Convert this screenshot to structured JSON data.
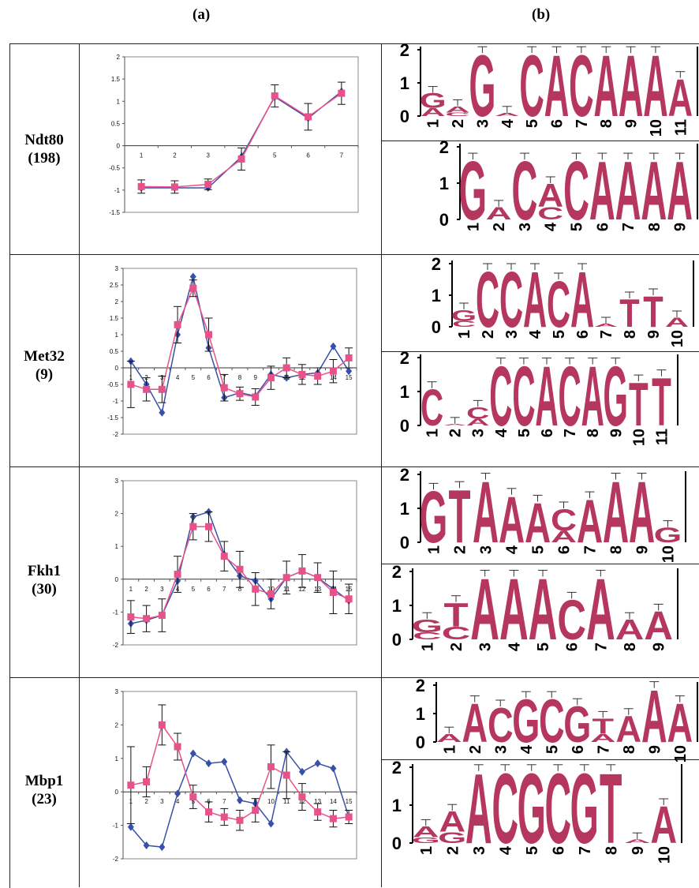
{
  "header": {
    "label_a": "(a)",
    "label_b": "(b)"
  },
  "colors": {
    "blue_series": "#3850a8",
    "pink_series": "#e8528a",
    "logo_letter": "#b5375e"
  },
  "rows": [
    {
      "name": "Ndt80",
      "count": "(198)"
    },
    {
      "name": "Met32",
      "count": "(9)"
    },
    {
      "name": "Fkh1",
      "count": "(30)"
    },
    {
      "name": "Mbp1",
      "count": "(23)"
    }
  ],
  "chart_data": [
    {
      "type": "line",
      "name": "Ndt80",
      "x": [
        1,
        2,
        3,
        4,
        5,
        6,
        7
      ],
      "ylim": [
        -1.5,
        2
      ],
      "yticks": [
        -1.5,
        -1,
        -0.5,
        0,
        0.5,
        1,
        1.5,
        2
      ],
      "series": [
        {
          "values": [
            -0.95,
            -0.95,
            -0.95,
            -0.25,
            1.1,
            0.62,
            1.22
          ]
        },
        {
          "values": [
            -0.92,
            -0.93,
            -0.87,
            -0.3,
            1.12,
            0.65,
            1.18
          ],
          "err": [
            0.15,
            0.14,
            0.12,
            0.25,
            0.25,
            0.3,
            0.25
          ]
        }
      ]
    },
    {
      "type": "line",
      "name": "Met32",
      "x": [
        1,
        2,
        3,
        4,
        5,
        6,
        7,
        8,
        9,
        10,
        11,
        12,
        13,
        14,
        15
      ],
      "ylim": [
        -2,
        3
      ],
      "yticks": [
        -2,
        -1.5,
        -1,
        -0.5,
        0,
        0.5,
        1,
        1.5,
        2,
        2.5,
        3
      ],
      "series": [
        {
          "values": [
            0.2,
            -0.5,
            -1.35,
            1.0,
            2.75,
            0.6,
            -0.9,
            -0.75,
            -0.85,
            -0.2,
            -0.3,
            -0.2,
            -0.15,
            0.65,
            -0.1
          ]
        },
        {
          "values": [
            -0.5,
            -0.65,
            -0.65,
            1.3,
            2.4,
            1.0,
            -0.6,
            -0.78,
            -0.88,
            -0.3,
            0.0,
            -0.2,
            -0.25,
            -0.1,
            0.3
          ],
          "err": [
            0.7,
            0.35,
            0.4,
            0.55,
            0.25,
            0.5,
            0.4,
            0.2,
            0.25,
            0.35,
            0.3,
            0.3,
            0.25,
            0.35,
            0.3
          ]
        }
      ]
    },
    {
      "type": "line",
      "name": "Fkh1",
      "x": [
        1,
        2,
        3,
        4,
        5,
        6,
        7,
        8,
        9,
        10,
        11,
        12,
        13,
        14,
        15
      ],
      "ylim": [
        -2,
        3
      ],
      "yticks": [
        -2,
        -1,
        0,
        1,
        2,
        3
      ],
      "series": [
        {
          "values": [
            -1.35,
            -1.25,
            -1.1,
            -0.05,
            1.9,
            2.05,
            0.75,
            0.1,
            -0.05,
            -0.6,
            0.05,
            0.25,
            0.05,
            -0.3,
            -0.65
          ]
        },
        {
          "values": [
            -1.15,
            -1.2,
            -1.1,
            0.15,
            1.6,
            1.6,
            0.7,
            0.3,
            -0.3,
            -0.45,
            0.05,
            0.25,
            0.05,
            -0.4,
            -0.6
          ],
          "err": [
            0.5,
            0.4,
            0.5,
            0.55,
            0.4,
            0.45,
            0.45,
            0.55,
            0.5,
            0.45,
            0.5,
            0.5,
            0.45,
            0.65,
            0.45
          ]
        }
      ]
    },
    {
      "type": "line",
      "name": "Mbp1",
      "x": [
        1,
        2,
        3,
        4,
        5,
        6,
        7,
        8,
        9,
        10,
        11,
        12,
        13,
        14,
        15
      ],
      "ylim": [
        -2,
        3
      ],
      "yticks": [
        -2,
        -1,
        0,
        1,
        2,
        3
      ],
      "series": [
        {
          "values": [
            -1.05,
            -1.6,
            -1.65,
            -0.05,
            1.15,
            0.85,
            0.9,
            -0.25,
            -0.35,
            -0.95,
            1.2,
            0.6,
            0.85,
            0.7,
            -0.75
          ]
        },
        {
          "values": [
            0.2,
            0.3,
            2.0,
            1.35,
            -0.15,
            -0.6,
            -0.75,
            -0.85,
            -0.55,
            0.75,
            0.5,
            -0.15,
            -0.6,
            -0.8,
            -0.75
          ],
          "err": [
            1.15,
            0.45,
            0.6,
            0.4,
            0.35,
            0.3,
            0.25,
            0.3,
            0.35,
            0.65,
            0.7,
            0.4,
            0.25,
            0.25,
            0.2
          ]
        }
      ]
    }
  ],
  "logos": [
    {
      "positions": [
        "1",
        "2",
        "3",
        "4",
        "5",
        "6",
        "7",
        "8",
        "9",
        "10",
        "11"
      ],
      "letters": [
        [
          "G",
          "A"
        ],
        [
          "A",
          "C"
        ],
        [
          "G"
        ],
        [
          "A"
        ],
        [
          "C"
        ],
        [
          "A"
        ],
        [
          "C"
        ],
        [
          "A"
        ],
        [
          "A"
        ],
        [
          "A"
        ],
        [
          "A"
        ]
      ],
      "heights": [
        0.7,
        0.3,
        1.9,
        0.1,
        1.9,
        1.9,
        1.9,
        1.9,
        1.9,
        1.9,
        1.15
      ]
    },
    {
      "positions": [
        "1",
        "2",
        "3",
        "4",
        "5",
        "6",
        "7",
        "8",
        "9"
      ],
      "letters": [
        [
          "G"
        ],
        [
          "A"
        ],
        [
          "C"
        ],
        [
          "A",
          "C"
        ],
        [
          "C"
        ],
        [
          "A"
        ],
        [
          "A"
        ],
        [
          "A"
        ],
        [
          "A"
        ]
      ],
      "heights": [
        1.65,
        0.35,
        1.65,
        1.0,
        1.65,
        1.65,
        1.65,
        1.65,
        1.65
      ]
    },
    {
      "positions": [
        "1",
        "2",
        "3",
        "4",
        "5",
        "6",
        "7",
        "8",
        "9",
        "10"
      ],
      "letters": [
        [
          "G",
          "C"
        ],
        [
          "C"
        ],
        [
          "C"
        ],
        [
          "A"
        ],
        [
          "C"
        ],
        [
          "A"
        ],
        [
          "A"
        ],
        [
          "T"
        ],
        [
          "T"
        ],
        [
          "A"
        ]
      ],
      "heights": [
        0.55,
        1.8,
        1.8,
        1.8,
        1.5,
        1.8,
        0.1,
        0.9,
        1.0,
        0.3
      ]
    },
    {
      "positions": [
        "1",
        "2",
        "3",
        "4",
        "5",
        "6",
        "7",
        "8",
        "9",
        "10",
        "11"
      ],
      "letters": [
        [
          "C"
        ],
        [
          "A"
        ],
        [
          "C",
          "A"
        ],
        [
          "C"
        ],
        [
          "C"
        ],
        [
          "A"
        ],
        [
          "C"
        ],
        [
          "A"
        ],
        [
          "G"
        ],
        [
          "T"
        ],
        [
          "T"
        ]
      ],
      "heights": [
        1.1,
        0.05,
        0.55,
        1.8,
        1.8,
        1.8,
        1.8,
        1.8,
        1.8,
        1.3,
        1.45
      ]
    },
    {
      "positions": [
        "1",
        "2",
        "3",
        "4",
        "5",
        "6",
        "7",
        "8",
        "9",
        "10"
      ],
      "letters": [
        [
          "G"
        ],
        [
          "T"
        ],
        [
          "A"
        ],
        [
          "A"
        ],
        [
          "A"
        ],
        [
          "C",
          "A"
        ],
        [
          "A"
        ],
        [
          "A"
        ],
        [
          "A"
        ],
        [
          "G"
        ]
      ],
      "heights": [
        1.55,
        1.6,
        1.85,
        1.4,
        1.2,
        1.0,
        1.3,
        1.85,
        1.85,
        0.45
      ]
    },
    {
      "positions": [
        "1",
        "2",
        "3",
        "4",
        "5",
        "6",
        "7",
        "8",
        "9"
      ],
      "letters": [
        [
          "G",
          "C"
        ],
        [
          "T",
          "C"
        ],
        [
          "A"
        ],
        [
          "A"
        ],
        [
          "A"
        ],
        [
          "C"
        ],
        [
          "A"
        ],
        [
          "A"
        ],
        [
          "A"
        ]
      ],
      "heights": [
        0.6,
        1.1,
        1.85,
        1.85,
        1.85,
        1.2,
        1.85,
        0.6,
        0.85
      ]
    },
    {
      "positions": [
        "1",
        "2",
        "3",
        "4",
        "5",
        "6",
        "7",
        "8",
        "9",
        "10"
      ],
      "letters": [
        [
          "A"
        ],
        [
          "A"
        ],
        [
          "C"
        ],
        [
          "G"
        ],
        [
          "C"
        ],
        [
          "G"
        ],
        [
          "T",
          "A"
        ],
        [
          "A"
        ],
        [
          "A"
        ],
        [
          "A"
        ]
      ],
      "heights": [
        0.3,
        1.4,
        1.25,
        1.55,
        1.55,
        1.3,
        0.85,
        0.95,
        1.9,
        1.4
      ]
    },
    {
      "positions": [
        "1",
        "2",
        "3",
        "4",
        "5",
        "6",
        "7",
        "8",
        "9",
        "10"
      ],
      "letters": [
        [
          "A",
          "G"
        ],
        [
          "A",
          "G"
        ],
        [
          "A"
        ],
        [
          "C"
        ],
        [
          "G"
        ],
        [
          "C"
        ],
        [
          "G"
        ],
        [
          "T"
        ],
        [
          "A"
        ],
        [
          "A"
        ]
      ],
      "heights": [
        0.45,
        0.85,
        1.9,
        1.9,
        1.9,
        1.9,
        1.9,
        1.9,
        0.1,
        1.0
      ]
    }
  ],
  "logo_yticks": [
    "0",
    "1",
    "2"
  ]
}
